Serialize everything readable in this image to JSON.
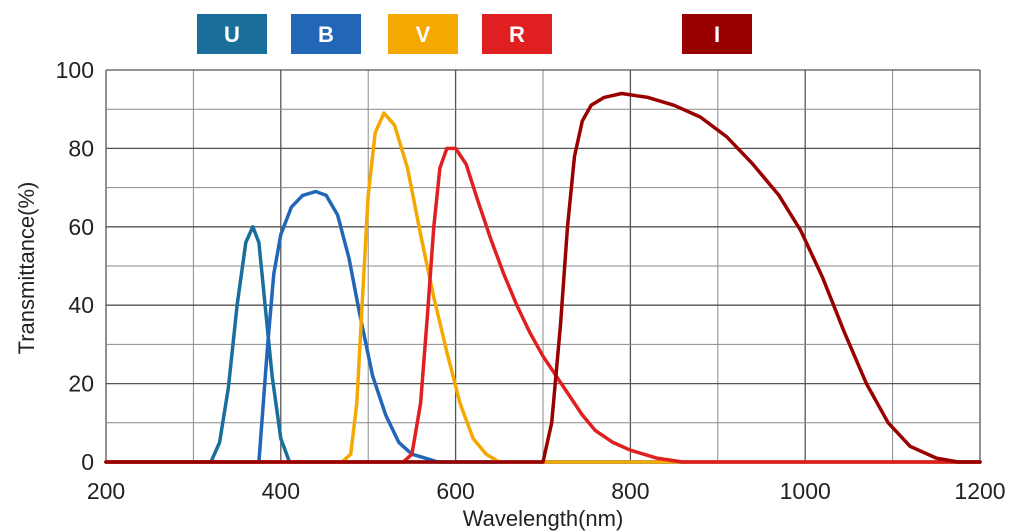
{
  "chart_data": {
    "type": "line",
    "xlabel": "Wavelength(nm)",
    "ylabel": "Transmittance(%)",
    "xlim": [
      200,
      1200
    ],
    "ylim": [
      0,
      100
    ],
    "xticks": [
      200,
      400,
      600,
      800,
      1000,
      1200
    ],
    "yticks": [
      0,
      20,
      40,
      60,
      80,
      100
    ],
    "x_minor_step": 100,
    "y_minor_step": 10,
    "grid": true,
    "legend_position": "top",
    "series": [
      {
        "name": "U",
        "color": "#1a6e9c",
        "points": [
          [
            200,
            0
          ],
          [
            320,
            0
          ],
          [
            330,
            5
          ],
          [
            340,
            19
          ],
          [
            350,
            40
          ],
          [
            360,
            56
          ],
          [
            368,
            60
          ],
          [
            375,
            56
          ],
          [
            382,
            40
          ],
          [
            390,
            22
          ],
          [
            400,
            6
          ],
          [
            410,
            0
          ],
          [
            1200,
            0
          ]
        ]
      },
      {
        "name": "B",
        "color": "#2266b8",
        "points": [
          [
            200,
            0
          ],
          [
            375,
            0
          ],
          [
            385,
            30
          ],
          [
            392,
            48
          ],
          [
            400,
            58
          ],
          [
            412,
            65
          ],
          [
            425,
            68
          ],
          [
            440,
            69
          ],
          [
            452,
            68
          ],
          [
            465,
            63
          ],
          [
            478,
            52
          ],
          [
            490,
            38
          ],
          [
            505,
            22
          ],
          [
            520,
            12
          ],
          [
            535,
            5
          ],
          [
            550,
            2
          ],
          [
            565,
            1
          ],
          [
            580,
            0
          ],
          [
            700,
            0
          ],
          [
            1200,
            0
          ]
        ]
      },
      {
        "name": "V",
        "color": "#f5a800",
        "points": [
          [
            200,
            0
          ],
          [
            470,
            0
          ],
          [
            480,
            2
          ],
          [
            487,
            15
          ],
          [
            493,
            40
          ],
          [
            500,
            68
          ],
          [
            508,
            84
          ],
          [
            518,
            89
          ],
          [
            530,
            86
          ],
          [
            545,
            75
          ],
          [
            560,
            58
          ],
          [
            575,
            42
          ],
          [
            590,
            28
          ],
          [
            605,
            15
          ],
          [
            620,
            6
          ],
          [
            635,
            2
          ],
          [
            650,
            0
          ],
          [
            1200,
            0
          ]
        ]
      },
      {
        "name": "R",
        "color": "#e02020",
        "points": [
          [
            200,
            0
          ],
          [
            540,
            0
          ],
          [
            550,
            2
          ],
          [
            560,
            15
          ],
          [
            568,
            38
          ],
          [
            575,
            60
          ],
          [
            582,
            75
          ],
          [
            590,
            80
          ],
          [
            600,
            80
          ],
          [
            612,
            76
          ],
          [
            625,
            67
          ],
          [
            640,
            57
          ],
          [
            655,
            48
          ],
          [
            670,
            40
          ],
          [
            685,
            33
          ],
          [
            700,
            27
          ],
          [
            715,
            22
          ],
          [
            730,
            17
          ],
          [
            745,
            12
          ],
          [
            760,
            8
          ],
          [
            780,
            5
          ],
          [
            800,
            3
          ],
          [
            830,
            1
          ],
          [
            860,
            0
          ],
          [
            1200,
            0
          ]
        ]
      },
      {
        "name": "I",
        "color": "#990000",
        "points": [
          [
            200,
            0
          ],
          [
            700,
            0
          ],
          [
            710,
            10
          ],
          [
            720,
            35
          ],
          [
            728,
            60
          ],
          [
            736,
            78
          ],
          [
            745,
            87
          ],
          [
            755,
            91
          ],
          [
            770,
            93
          ],
          [
            790,
            94
          ],
          [
            820,
            93
          ],
          [
            850,
            91
          ],
          [
            880,
            88
          ],
          [
            910,
            83
          ],
          [
            940,
            76
          ],
          [
            970,
            68
          ],
          [
            995,
            59
          ],
          [
            1020,
            47
          ],
          [
            1045,
            33
          ],
          [
            1070,
            20
          ],
          [
            1095,
            10
          ],
          [
            1120,
            4
          ],
          [
            1150,
            1
          ],
          [
            1175,
            0
          ],
          [
            1200,
            0
          ]
        ]
      }
    ]
  }
}
